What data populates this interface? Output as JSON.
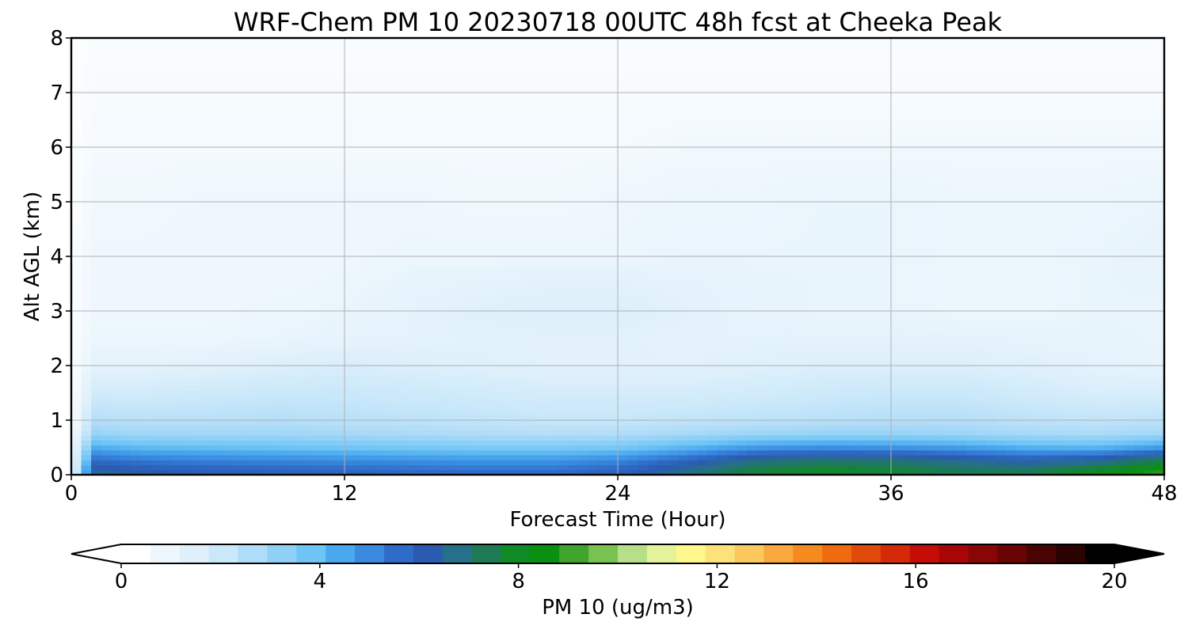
{
  "chart_data": {
    "type": "heatmap",
    "title": "WRF-Chem PM 10  20230718 00UTC 48h fcst at Cheeka Peak",
    "xlabel": "Forecast Time (Hour)",
    "ylabel": "Alt AGL (km)",
    "xlim": [
      0,
      48
    ],
    "ylim": [
      0,
      8
    ],
    "xticks": [
      "0",
      "12",
      "24",
      "36",
      "48"
    ],
    "yticks": [
      "0",
      "1",
      "2",
      "3",
      "4",
      "5",
      "6",
      "7",
      "8"
    ],
    "grid": true,
    "colorbar": {
      "label": "PM 10  (ug/m3)",
      "range": [
        0,
        20
      ],
      "ticks": [
        "0",
        "4",
        "8",
        "12",
        "16",
        "20"
      ],
      "extend": "both",
      "colors": [
        "#ffffff",
        "#eef7fd",
        "#dff0fb",
        "#c9e8fa",
        "#afdcf8",
        "#8fd0f7",
        "#6ec5f5",
        "#4aa8ee",
        "#3a8be0",
        "#2f6cc9",
        "#2a5bb0",
        "#26708a",
        "#1d7a55",
        "#0f8a25",
        "#0a9010",
        "#3fa52c",
        "#79c24f",
        "#b7df8a",
        "#e4f29a",
        "#fff68c",
        "#fde27a",
        "#fbc85e",
        "#f9a83e",
        "#f58a1e",
        "#ef6b10",
        "#e24a0c",
        "#d42a08",
        "#c40d06",
        "#a80606",
        "#8a0505",
        "#6a0404",
        "#4a0303",
        "#2a0202",
        "#000000"
      ]
    },
    "time_hours": [
      0,
      1,
      3,
      6,
      9,
      12,
      15,
      18,
      21,
      24,
      27,
      30,
      33,
      36,
      39,
      42,
      45,
      48
    ],
    "altitude_km": [
      0,
      0.1,
      0.25,
      0.5,
      0.75,
      1.0,
      1.5,
      2.0,
      2.5,
      3.0,
      3.5,
      4.0,
      5.0,
      6.0,
      7.0,
      8.0
    ],
    "pm10": [
      [
        0.5,
        6.5,
        6.3,
        6.0,
        5.9,
        5.8,
        5.7,
        5.6,
        5.6,
        5.9,
        6.8,
        7.6,
        7.8,
        7.6,
        7.3,
        7.4,
        8.3,
        9.0
      ],
      [
        0.5,
        6.3,
        6.0,
        5.8,
        5.6,
        5.5,
        5.4,
        5.3,
        5.3,
        5.6,
        6.5,
        7.5,
        7.8,
        7.6,
        7.2,
        7.1,
        7.8,
        8.6
      ],
      [
        0.4,
        5.6,
        5.3,
        5.1,
        5.0,
        4.9,
        4.8,
        4.7,
        4.7,
        5.0,
        5.8,
        6.8,
        7.1,
        7.0,
        6.6,
        6.2,
        6.6,
        7.6
      ],
      [
        0.3,
        4.2,
        3.9,
        3.8,
        3.7,
        3.6,
        3.5,
        3.4,
        3.4,
        3.5,
        4.0,
        4.6,
        4.8,
        4.7,
        4.5,
        4.1,
        4.0,
        4.6
      ],
      [
        0.2,
        2.9,
        2.7,
        2.7,
        2.7,
        2.6,
        2.5,
        2.4,
        2.3,
        2.4,
        2.6,
        2.8,
        2.9,
        2.9,
        2.8,
        2.6,
        2.5,
        2.7
      ],
      [
        0.1,
        2.3,
        2.2,
        2.2,
        2.3,
        2.2,
        2.1,
        2.0,
        1.9,
        1.9,
        2.0,
        2.1,
        2.2,
        2.3,
        2.3,
        2.1,
        2.0,
        2.1
      ],
      [
        0.1,
        1.6,
        1.6,
        1.7,
        1.8,
        1.8,
        1.7,
        1.6,
        1.5,
        1.5,
        1.5,
        1.6,
        1.7,
        1.8,
        1.8,
        1.6,
        1.4,
        1.4
      ],
      [
        0.1,
        1.0,
        1.0,
        1.1,
        1.3,
        1.4,
        1.3,
        1.2,
        1.1,
        1.1,
        1.1,
        1.2,
        1.3,
        1.3,
        1.3,
        1.2,
        1.0,
        0.9
      ],
      [
        0.1,
        0.7,
        0.7,
        0.7,
        0.8,
        0.9,
        1.0,
        1.1,
        1.1,
        1.1,
        1.0,
        1.0,
        1.0,
        1.0,
        1.0,
        0.9,
        0.9,
        0.8
      ],
      [
        0.1,
        0.6,
        0.6,
        0.6,
        0.7,
        0.8,
        1.0,
        1.2,
        1.3,
        1.3,
        1.1,
        0.9,
        0.8,
        0.8,
        0.7,
        0.7,
        0.8,
        0.8
      ],
      [
        0.1,
        0.6,
        0.6,
        0.6,
        0.6,
        0.7,
        0.9,
        1.0,
        1.1,
        1.1,
        1.0,
        0.9,
        0.8,
        0.8,
        0.7,
        0.7,
        0.8,
        0.9
      ],
      [
        0.1,
        0.6,
        0.6,
        0.6,
        0.6,
        0.6,
        0.7,
        0.7,
        0.7,
        0.7,
        0.8,
        0.8,
        0.8,
        0.8,
        0.7,
        0.7,
        0.8,
        0.9
      ],
      [
        0.1,
        0.5,
        0.5,
        0.6,
        0.6,
        0.6,
        0.6,
        0.5,
        0.5,
        0.6,
        0.7,
        0.7,
        0.8,
        0.8,
        0.7,
        0.7,
        0.7,
        0.8
      ],
      [
        0.1,
        0.4,
        0.4,
        0.4,
        0.4,
        0.4,
        0.4,
        0.4,
        0.4,
        0.4,
        0.5,
        0.5,
        0.5,
        0.5,
        0.5,
        0.5,
        0.5,
        0.5
      ],
      [
        0.1,
        0.3,
        0.3,
        0.3,
        0.3,
        0.3,
        0.3,
        0.3,
        0.3,
        0.3,
        0.3,
        0.3,
        0.3,
        0.3,
        0.3,
        0.3,
        0.3,
        0.3
      ],
      [
        0.1,
        0.2,
        0.2,
        0.2,
        0.2,
        0.2,
        0.2,
        0.2,
        0.2,
        0.2,
        0.2,
        0.2,
        0.2,
        0.2,
        0.2,
        0.2,
        0.2,
        0.2
      ]
    ]
  }
}
